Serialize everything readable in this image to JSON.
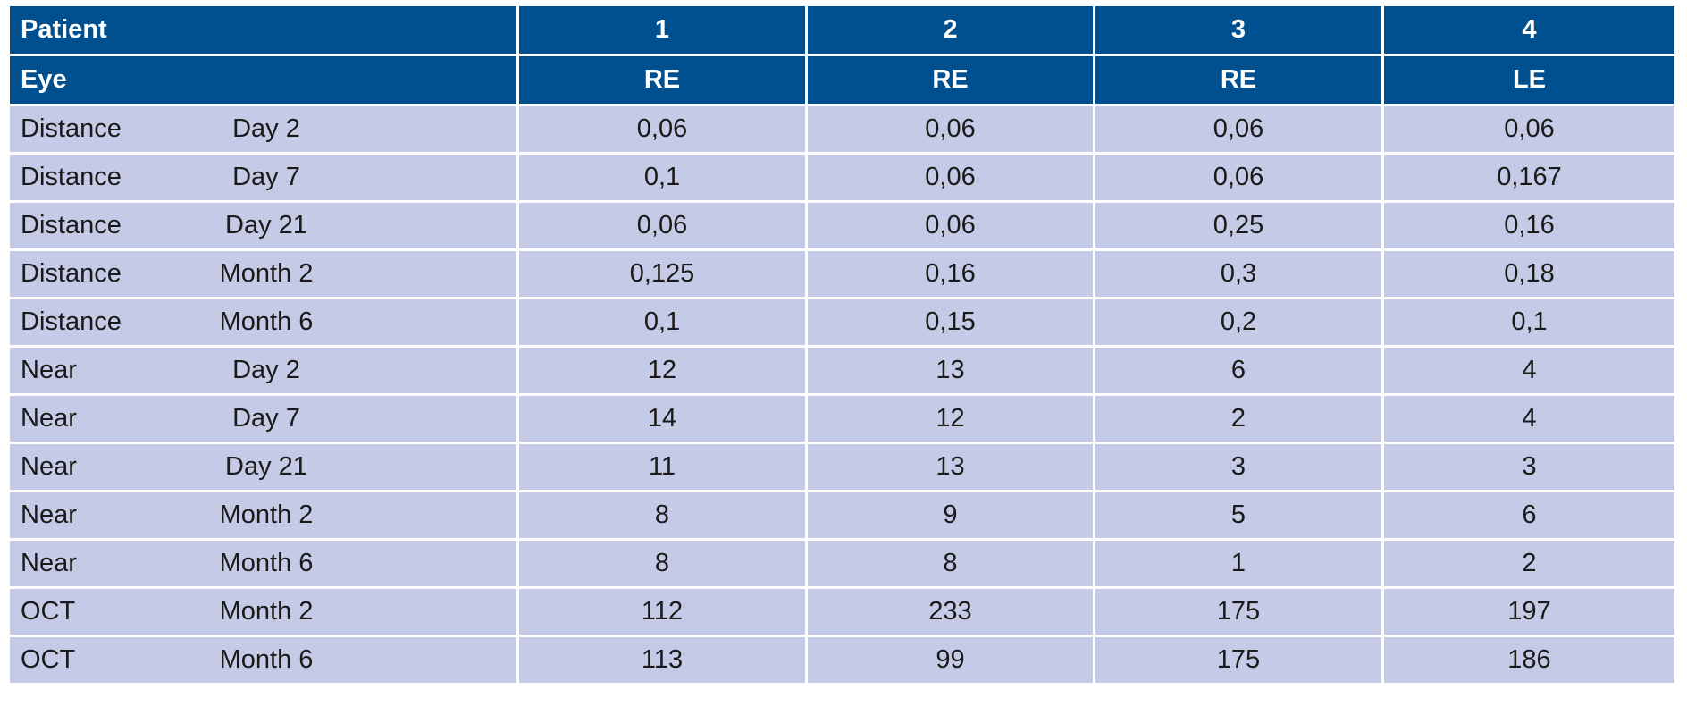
{
  "table": {
    "header_rows": [
      {
        "label": "Patient",
        "cells": [
          "1",
          "2",
          "3",
          "4"
        ]
      },
      {
        "label": "Eye",
        "cells": [
          "RE",
          "RE",
          "RE",
          "LE"
        ]
      }
    ],
    "rows": [
      {
        "measure": "Distance",
        "timepoint": "Day 2",
        "values": [
          "0,06",
          "0,06",
          "0,06",
          "0,06"
        ]
      },
      {
        "measure": "Distance",
        "timepoint": "Day 7",
        "values": [
          "0,1",
          "0,06",
          "0,06",
          "0,167"
        ]
      },
      {
        "measure": "Distance",
        "timepoint": "Day 21",
        "values": [
          "0,06",
          "0,06",
          "0,25",
          "0,16"
        ]
      },
      {
        "measure": "Distance",
        "timepoint": "Month 2",
        "values": [
          "0,125",
          "0,16",
          "0,3",
          "0,18"
        ]
      },
      {
        "measure": "Distance",
        "timepoint": "Month 6",
        "values": [
          "0,1",
          "0,15",
          "0,2",
          "0,1"
        ]
      },
      {
        "measure": "Near",
        "timepoint": "Day 2",
        "values": [
          "12",
          "13",
          "6",
          "4"
        ]
      },
      {
        "measure": "Near",
        "timepoint": "Day 7",
        "values": [
          "14",
          "12",
          "2",
          "4"
        ]
      },
      {
        "measure": "Near",
        "timepoint": "Day 21",
        "values": [
          "11",
          "13",
          "3",
          "3"
        ]
      },
      {
        "measure": "Near",
        "timepoint": "Month 2",
        "values": [
          "8",
          "9",
          "5",
          "6"
        ]
      },
      {
        "measure": "Near",
        "timepoint": "Month 6",
        "values": [
          "8",
          "8",
          "1",
          "2"
        ]
      },
      {
        "measure": "OCT",
        "timepoint": "Month 2",
        "values": [
          "112",
          "233",
          "175",
          "197"
        ]
      },
      {
        "measure": "OCT",
        "timepoint": "Month 6",
        "values": [
          "113",
          "99",
          "175",
          "186"
        ]
      }
    ]
  },
  "colors": {
    "header_bg": "#00508f",
    "header_text": "#ffffff",
    "row_bg": "#c5cbe6",
    "border": "#ffffff"
  }
}
